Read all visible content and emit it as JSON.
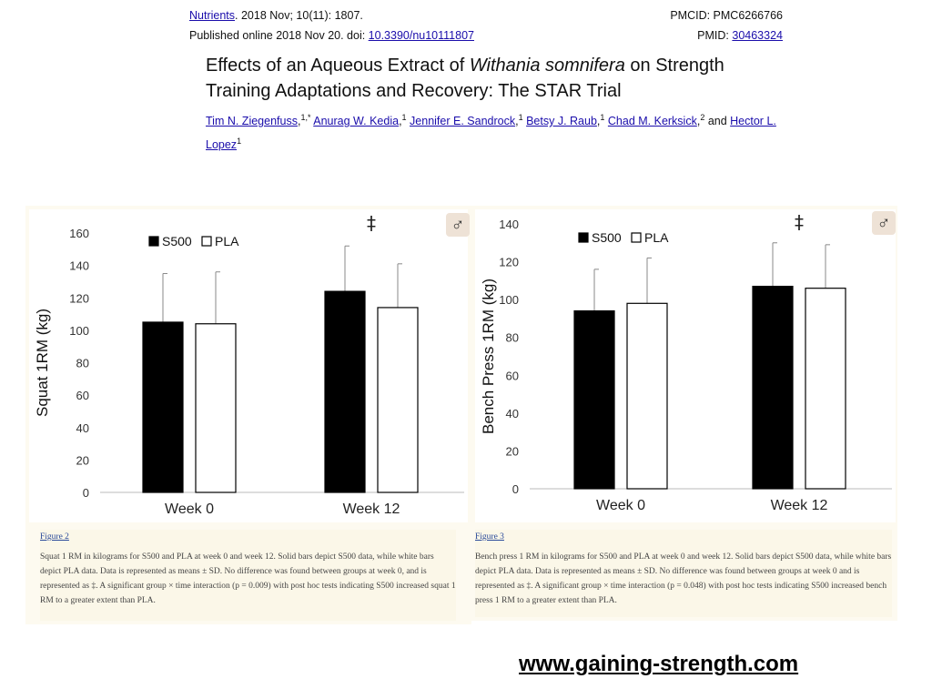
{
  "citation": {
    "journal": "Nutrients",
    "issue": ". 2018 Nov; 10(11): 1807.",
    "pmcid": "PMCID: PMC6266766",
    "published": "Published online 2018 Nov 20. doi: ",
    "doi": "10.3390/nu10111807",
    "pmid_label": "PMID: ",
    "pmid": "30463324"
  },
  "article": {
    "title_part1": "Effects of an Aqueous Extract of ",
    "title_italic": "Withania somnifera",
    "title_part2": " on Strength Training Adaptations and Recovery: The STAR Trial",
    "authors": [
      {
        "name": "Tim N. Ziegenfuss",
        "sup": "1,*"
      },
      {
        "name": "Anurag W. Kedia",
        "sup": "1"
      },
      {
        "name": "Jennifer E. Sandrock",
        "sup": "1"
      },
      {
        "name": "Betsy J. Raub",
        "sup": "1"
      },
      {
        "name": "Chad M. Kerksick",
        "sup": "2"
      },
      {
        "name": "Hector L. Lopez",
        "sup": "1"
      }
    ],
    "and_text": "and"
  },
  "chart_data": [
    {
      "type": "bar",
      "ylabel": "Squat 1RM (kg)",
      "categories": [
        "Week 0",
        "Week 12"
      ],
      "ylim": [
        0,
        160
      ],
      "yticks": [
        0,
        20,
        40,
        60,
        80,
        100,
        120,
        140,
        160
      ],
      "series": [
        {
          "name": "S500",
          "values": [
            105,
            124
          ],
          "sd": [
            30,
            28
          ],
          "color": "#000000"
        },
        {
          "name": "PLA",
          "values": [
            104,
            114
          ],
          "sd": [
            32,
            27
          ],
          "color": "#ffffff"
        }
      ],
      "annotation": "‡",
      "legend_position": "top-left",
      "badge": "♂"
    },
    {
      "type": "bar",
      "ylabel": "Bench Press 1RM (kg)",
      "categories": [
        "Week 0",
        "Week 12"
      ],
      "ylim": [
        0,
        140
      ],
      "yticks": [
        0,
        20,
        40,
        60,
        80,
        100,
        120,
        140
      ],
      "series": [
        {
          "name": "S500",
          "values": [
            94,
            107
          ],
          "sd": [
            22,
            23
          ],
          "color": "#000000"
        },
        {
          "name": "PLA",
          "values": [
            98,
            106
          ],
          "sd": [
            24,
            23
          ],
          "color": "#ffffff"
        }
      ],
      "annotation": "‡",
      "legend_position": "top-left",
      "badge": "♂"
    }
  ],
  "captions": [
    {
      "label": "Figure 2",
      "text": "Squat 1 RM in kilograms for S500 and PLA at week 0 and week 12. Solid bars depict S500 data, while white bars depict PLA data. Data is represented as means ± SD. No difference was found between groups at week 0, and is represented as ‡. A significant group × time interaction (p = 0.009) with post hoc tests indicating S500 increased squat 1 RM to a greater extent than PLA."
    },
    {
      "label": "Figure 3",
      "text": "Bench press 1 RM in kilograms for S500 and PLA at week 0 and week 12. Solid bars depict S500 data, while white bars depict PLA data. Data is represented as means ± SD. No difference was found between groups at week 0 and is represented as ‡. A significant group × time interaction (p = 0.048) with post hoc tests indicating S500 increased bench press 1 RM to a greater extent than PLA."
    }
  ],
  "footer": {
    "url": "www.gaining-strength.com"
  }
}
